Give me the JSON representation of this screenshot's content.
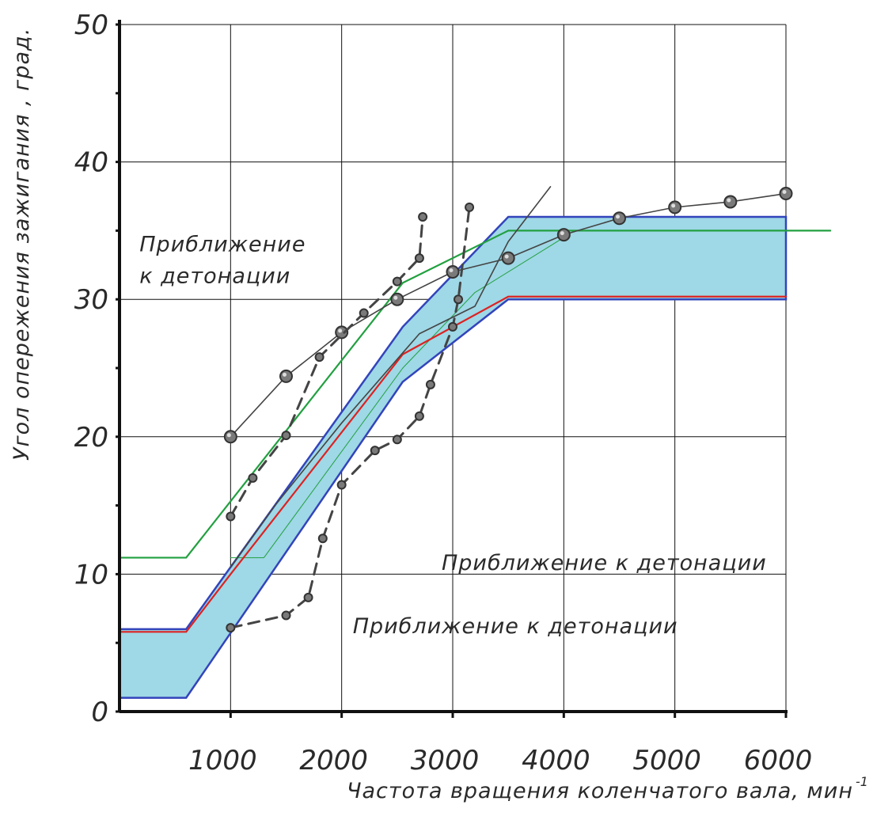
{
  "chart_data": {
    "type": "line",
    "xlabel": "Частота вращения коленчатого вала, мин",
    "xlabel_sup": "-1",
    "ylabel": "Угол опережения зажигания , град.",
    "xlim": [
      0,
      6000
    ],
    "ylim": [
      0,
      50
    ],
    "x_ticks": [
      1000,
      2000,
      3000,
      4000,
      5000,
      6000
    ],
    "x_tick_labels": [
      "1000",
      "2000",
      "3000",
      "4000",
      "5000",
      "6000"
    ],
    "y_ticks": [
      0,
      10,
      20,
      30,
      40,
      50
    ],
    "y_tick_labels": [
      "0",
      "10",
      "20",
      "30",
      "40",
      "50"
    ],
    "grid": true,
    "annotations": [
      {
        "text": "Приближение",
        "x": 180,
        "y": 33.5
      },
      {
        "text": "к детонации",
        "x": 180,
        "y": 31.2
      },
      {
        "text": "Приближение к детонации",
        "x": 2900,
        "y": 10.3
      },
      {
        "text": "Приближение к детонации",
        "x": 2100,
        "y": 5.7
      }
    ],
    "band": {
      "name": "",
      "fill": "#9fd8e6",
      "stroke": "#3344bb",
      "upper": [
        [
          0,
          6
        ],
        [
          600,
          6
        ],
        [
          2550,
          28
        ],
        [
          3500,
          36
        ],
        [
          6000,
          36
        ]
      ],
      "lower": [
        [
          0,
          1
        ],
        [
          600,
          1
        ],
        [
          2550,
          24
        ],
        [
          3500,
          30
        ],
        [
          6000,
          30
        ]
      ]
    },
    "series": [
      {
        "color": "#22a040",
        "style": "solid",
        "width": 2.2,
        "marker": "none",
        "points": [
          [
            0,
            11.2
          ],
          [
            600,
            11.2
          ],
          [
            2550,
            31.2
          ],
          [
            3500,
            35
          ],
          [
            6400,
            35
          ]
        ]
      },
      {
        "color": "#22a040",
        "style": "solid",
        "width": 1,
        "marker": "none",
        "points": [
          [
            1000,
            11.2
          ],
          [
            1300,
            11.2
          ],
          [
            2550,
            25
          ],
          [
            3200,
            30.5
          ],
          [
            4000,
            34.5
          ]
        ]
      },
      {
        "color": "#dd2222",
        "style": "solid",
        "width": 2.2,
        "marker": "none",
        "points": [
          [
            0,
            5.8
          ],
          [
            600,
            5.8
          ],
          [
            1000,
            10
          ],
          [
            2550,
            26
          ],
          [
            3500,
            30.2
          ],
          [
            6000,
            30.2
          ]
        ]
      },
      {
        "color": "#444444",
        "style": "solid",
        "width": 1.6,
        "marker": "big",
        "points": [
          [
            1000,
            20
          ],
          [
            1500,
            24.4
          ],
          [
            2000,
            27.6
          ],
          [
            2500,
            30
          ],
          [
            3000,
            32
          ],
          [
            3500,
            33
          ],
          [
            4000,
            34.7
          ],
          [
            4500,
            35.9
          ],
          [
            5000,
            36.7
          ],
          [
            5500,
            37.1
          ],
          [
            6000,
            37.7
          ]
        ]
      },
      {
        "color": "#444444",
        "style": "dashed",
        "width": 3,
        "marker": "small",
        "points": [
          [
            1000,
            14.2
          ],
          [
            1200,
            17
          ],
          [
            1500,
            20.1
          ],
          [
            1800,
            25.8
          ],
          [
            2200,
            29
          ],
          [
            2500,
            31.3
          ],
          [
            2700,
            33
          ],
          [
            2730,
            36
          ]
        ]
      },
      {
        "color": "#444444",
        "style": "dashed",
        "width": 3,
        "marker": "small",
        "points": [
          [
            1000,
            6.1
          ],
          [
            1500,
            7
          ],
          [
            1700,
            8.3
          ],
          [
            1830,
            12.6
          ],
          [
            2000,
            16.5
          ],
          [
            2300,
            19
          ],
          [
            2500,
            19.8
          ],
          [
            2700,
            21.5
          ],
          [
            2800,
            23.8
          ],
          [
            3000,
            28
          ],
          [
            3050,
            30
          ],
          [
            3150,
            36.7
          ]
        ]
      },
      {
        "color": "#444444",
        "style": "solid",
        "width": 1.6,
        "marker": "none",
        "points": [
          [
            1000,
            10.5
          ],
          [
            1400,
            15
          ],
          [
            2000,
            21
          ],
          [
            2700,
            27.5
          ],
          [
            3200,
            29.5
          ],
          [
            3500,
            34.2
          ],
          [
            3880,
            38.2
          ]
        ]
      }
    ]
  }
}
